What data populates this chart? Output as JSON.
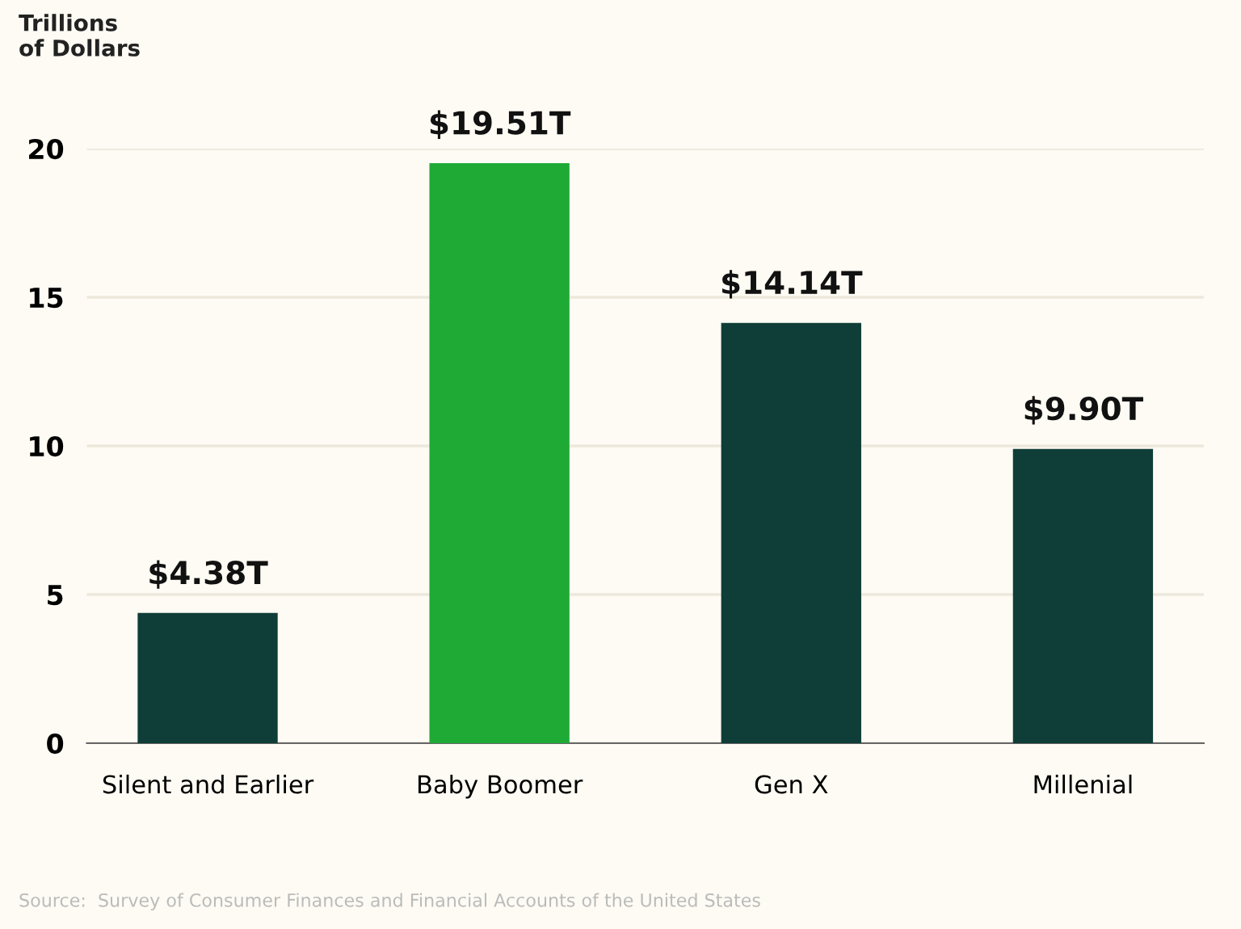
{
  "chart_data": {
    "type": "bar",
    "ylabel": "Trillions\nof Dollars",
    "categories": [
      "Silent and Earlier",
      "Baby Boomer",
      "Gen X",
      "Millenial"
    ],
    "values": [
      4.38,
      19.51,
      14.14,
      9.9
    ],
    "colors": [
      "#0f3d37",
      "#1faa36",
      "#0f3d37",
      "#0f3d37"
    ],
    "value_labels": [
      "$4.38T",
      "$19.51T",
      "$14.14T",
      "$9.90T"
    ],
    "ylim": [
      0,
      20
    ],
    "yticks": [
      0,
      5,
      10,
      15,
      20
    ],
    "grid": "y",
    "annotations": [
      "Source:  Survey of Consumer Finances and Financial Accounts of the United States"
    ]
  }
}
